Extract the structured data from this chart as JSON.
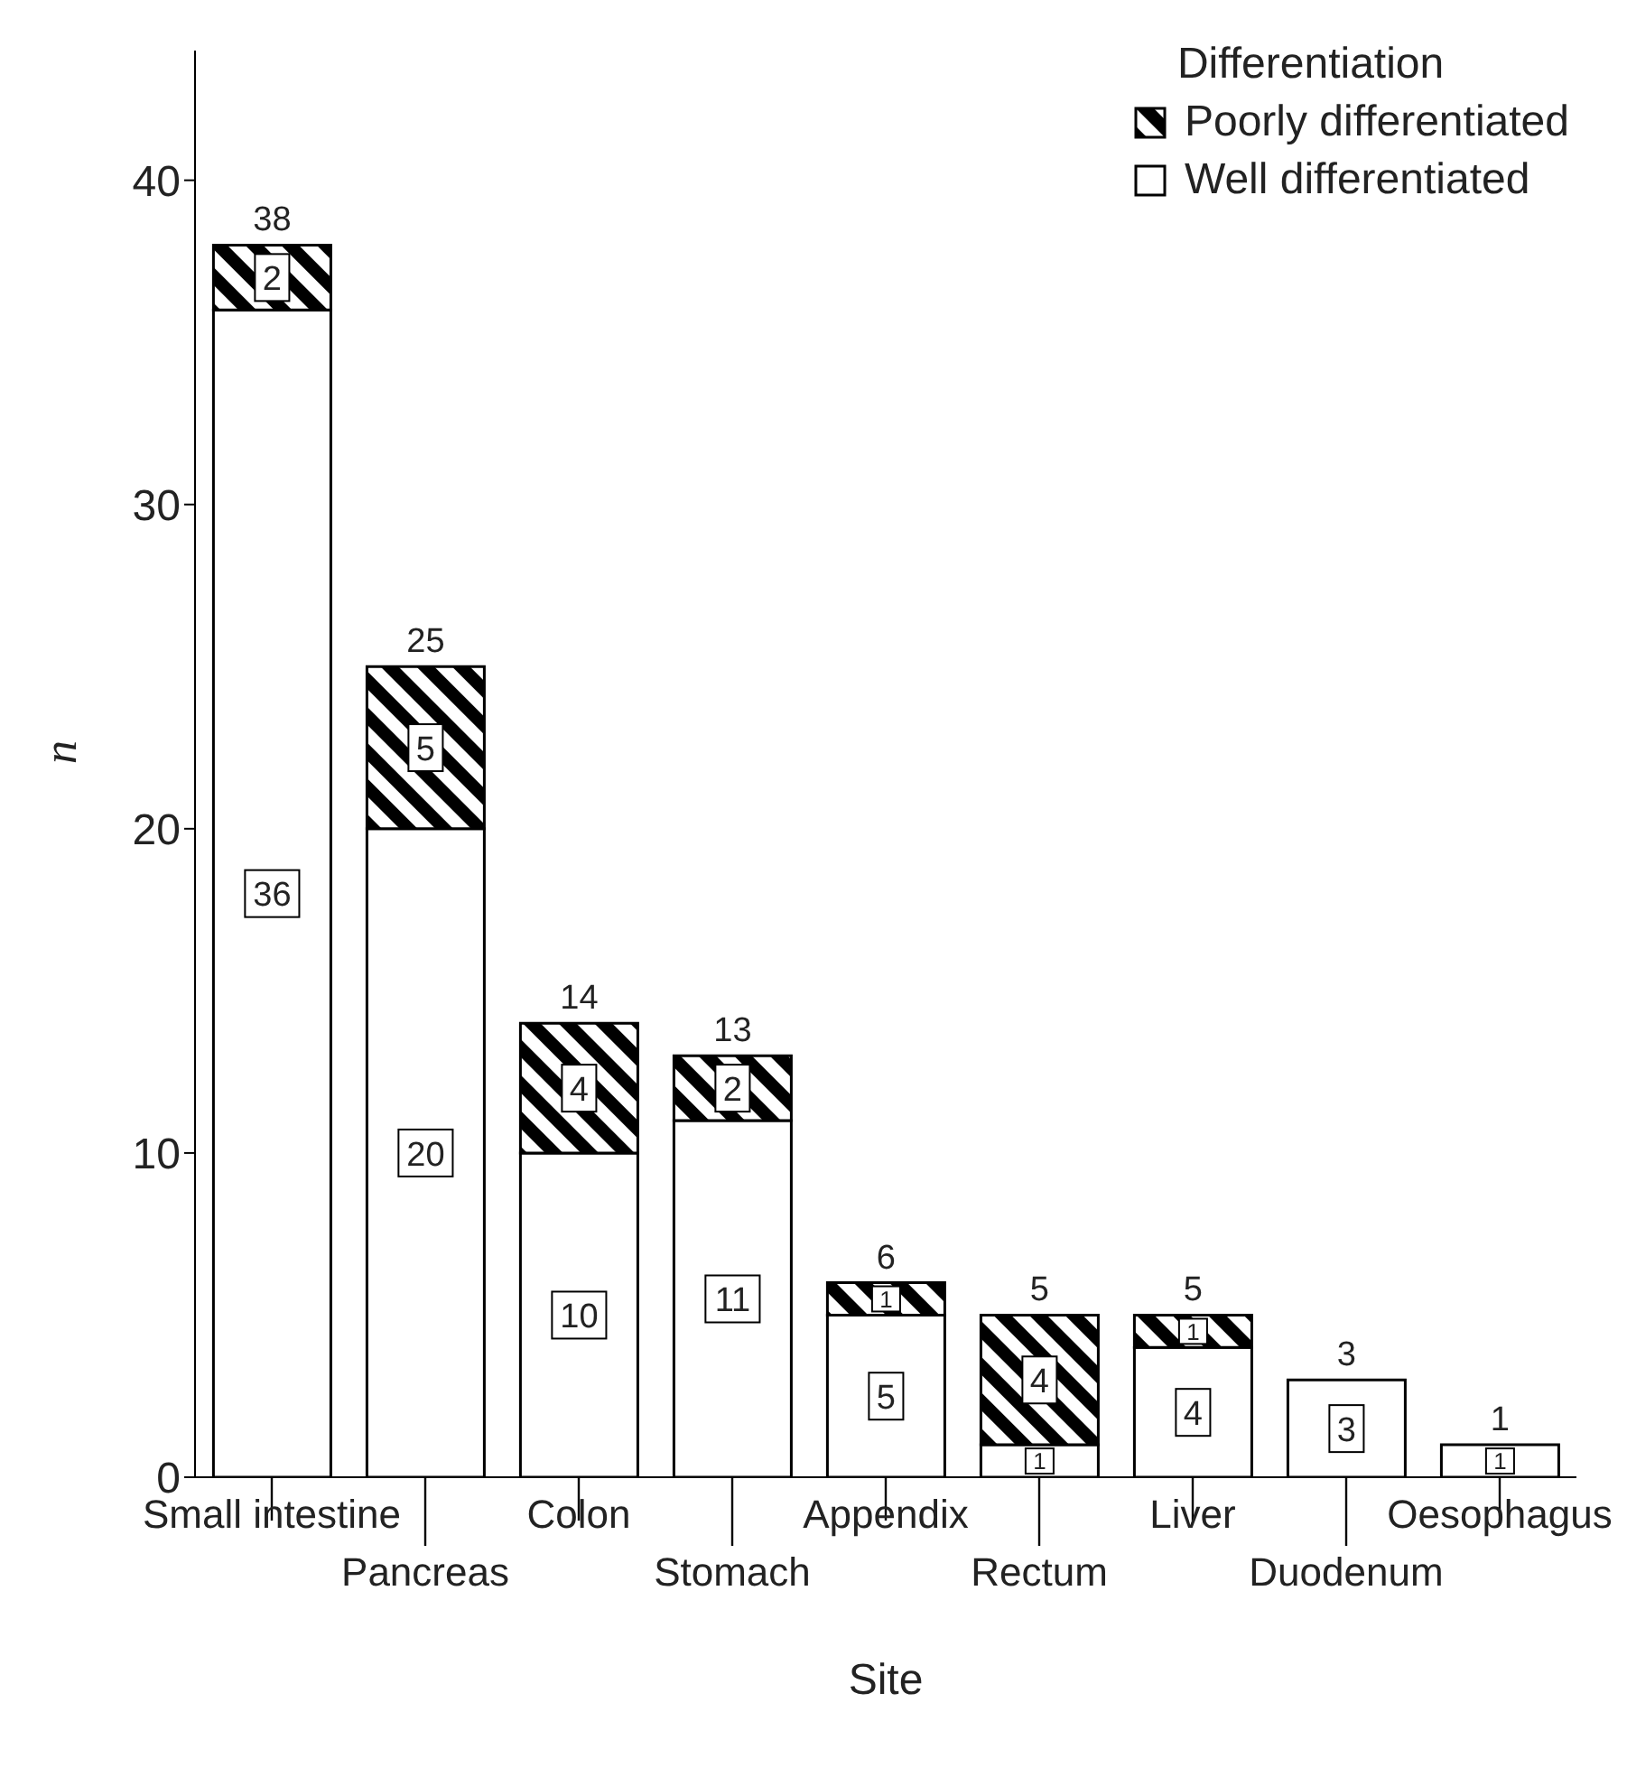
{
  "chart_data": {
    "type": "bar",
    "stacked": true,
    "xlabel": "Site",
    "ylabel": "n",
    "legend_title": "Differentiation",
    "legend": "top right",
    "data_labels": true,
    "categories": [
      "Small intestine",
      "Pancreas",
      "Colon",
      "Stomach",
      "Appendix",
      "Rectum",
      "Liver",
      "Duodenum",
      "Oesophagus"
    ],
    "series": [
      {
        "name": "Well differentiated",
        "color": "#ffffff",
        "values": [
          36,
          20,
          10,
          11,
          5,
          1,
          4,
          3,
          1
        ]
      },
      {
        "name": "Poorly differentiated",
        "color": "#000000",
        "values": [
          2,
          5,
          4,
          2,
          1,
          4,
          1,
          null,
          null
        ]
      }
    ],
    "totals": [
      "38",
      "25",
      "14",
      "13",
      "6",
      "5",
      "5",
      "3",
      "1"
    ],
    "ylim": [
      0,
      44
    ],
    "yticks": [
      0,
      10,
      20,
      30,
      40
    ]
  }
}
